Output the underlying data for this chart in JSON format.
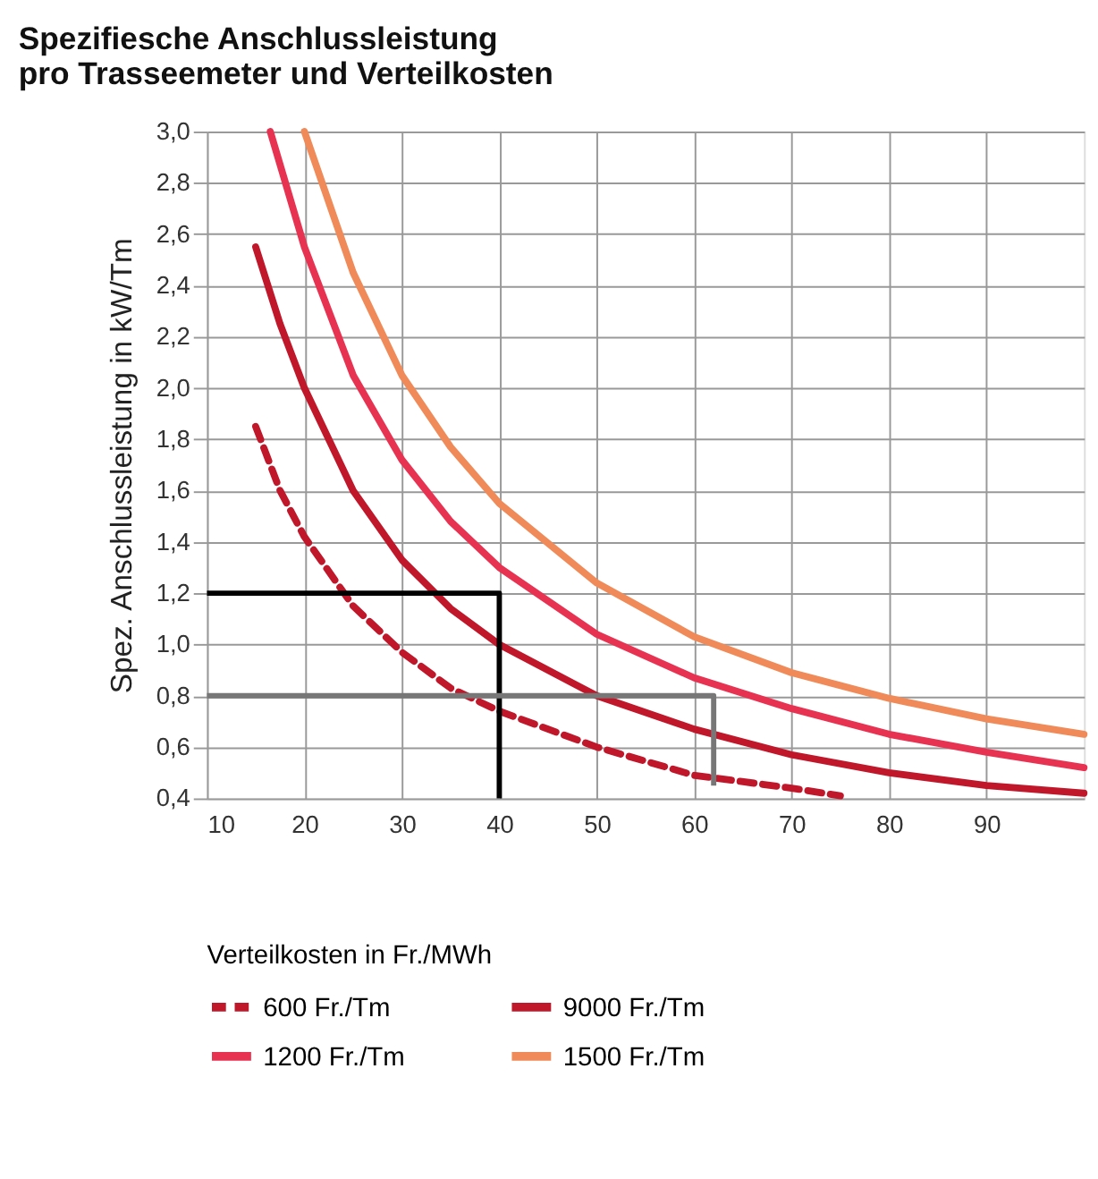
{
  "chart_data": {
    "type": "line",
    "title": [
      "Spezifiesche Anschlussleistung",
      "pro Trasseemeter und Verteilkosten"
    ],
    "ylabel": "Spez. Anschlussleistung in kW/Tm",
    "legend_title": "Verteilkosten in Fr./MWh",
    "legend": "bottom",
    "grid": true,
    "marker": "none",
    "xlim": [
      10,
      100
    ],
    "xticks": [
      10,
      20,
      30,
      40,
      50,
      60,
      70,
      80,
      90
    ],
    "ylim": [
      0.4,
      3.0
    ],
    "yticks": [
      {
        "value": 0.4,
        "label": "0,4"
      },
      {
        "value": 0.6,
        "label": "0,6"
      },
      {
        "value": 0.8,
        "label": "0,8"
      },
      {
        "value": 1.0,
        "label": "1,0"
      },
      {
        "value": 1.2,
        "label": "1,2"
      },
      {
        "value": 1.4,
        "label": "1,4"
      },
      {
        "value": 1.6,
        "label": "1,6"
      },
      {
        "value": 1.8,
        "label": "1,8"
      },
      {
        "value": 2.0,
        "label": "2,0"
      },
      {
        "value": 2.2,
        "label": "2,2"
      },
      {
        "value": 2.4,
        "label": "2,4"
      },
      {
        "value": 2.6,
        "label": "2,6"
      },
      {
        "value": 2.8,
        "label": "2,8"
      },
      {
        "value": 3.0,
        "label": "3,0"
      }
    ],
    "series": [
      {
        "name": "600 Fr./Tm",
        "color": "#c0172a",
        "line_style": "dashed",
        "x": [
          15,
          17.5,
          20,
          25,
          30,
          35,
          40,
          50,
          60,
          70,
          75
        ],
        "values": [
          1.85,
          1.6,
          1.42,
          1.15,
          0.97,
          0.83,
          0.74,
          0.6,
          0.49,
          0.44,
          0.41
        ]
      },
      {
        "name": "9000 Fr./Tm",
        "color": "#c0172a",
        "line_style": "solid",
        "x": [
          15,
          17.5,
          20,
          25,
          30,
          35,
          40,
          50,
          60,
          70,
          80,
          90,
          100
        ],
        "values": [
          2.55,
          2.25,
          2.0,
          1.6,
          1.33,
          1.14,
          1.0,
          0.8,
          0.67,
          0.57,
          0.5,
          0.45,
          0.42
        ]
      },
      {
        "name": "1200 Fr./Tm",
        "color": "#e73351",
        "line_style": "solid",
        "x": [
          16.5,
          20,
          25,
          30,
          35,
          40,
          50,
          60,
          70,
          80,
          90,
          100
        ],
        "values": [
          3.0,
          2.55,
          2.05,
          1.72,
          1.48,
          1.3,
          1.04,
          0.87,
          0.75,
          0.65,
          0.58,
          0.52
        ]
      },
      {
        "name": "1500 Fr./Tm",
        "color": "#f08a58",
        "line_style": "solid",
        "x": [
          20,
          25,
          30,
          35,
          40,
          50,
          60,
          70,
          80,
          90,
          100
        ],
        "values": [
          3.0,
          2.45,
          2.05,
          1.77,
          1.55,
          1.24,
          1.03,
          0.89,
          0.79,
          0.71,
          0.65
        ]
      },
      {
        "color": "#000000",
        "line_style": "solid",
        "x": [
          40,
          40,
          10
        ],
        "values": [
          0.4,
          1.2,
          1.2
        ]
      },
      {
        "color": "#777777",
        "line_style": "solid",
        "x": [
          10,
          62,
          62
        ],
        "values": [
          0.8,
          0.8,
          0.45
        ]
      }
    ]
  }
}
